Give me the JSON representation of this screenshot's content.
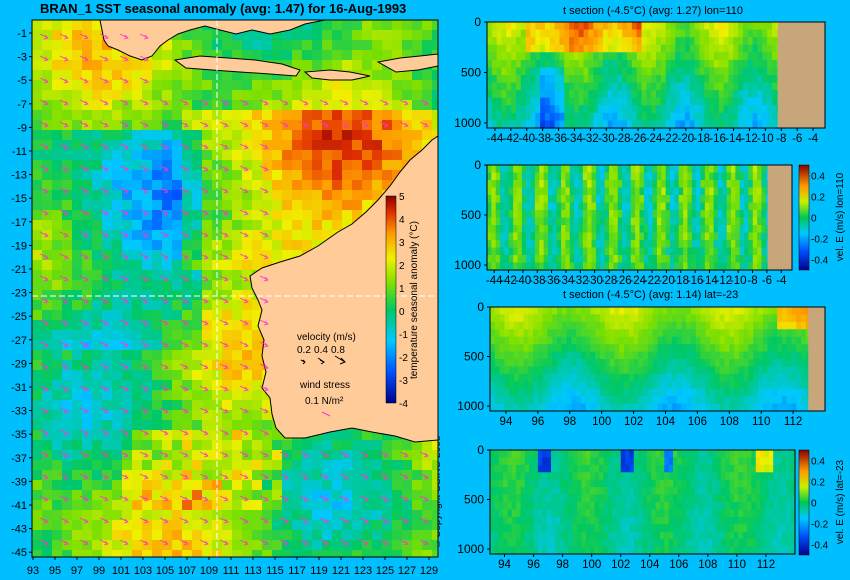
{
  "main_title": "BRAN_1 SST seasonal anomaly (avg: 1.47) for 16-Aug-1993",
  "copyright": "© Copyright CSIRO 2006",
  "map": {
    "colorbar_label": "temperature seasonal anomaly (°C)",
    "velocity_title": "velocity (m/s)",
    "velocity_scale": [
      "0.2",
      "0.4",
      "0.8"
    ],
    "wind_title": "wind stress",
    "wind_value": "0.1 N/m²",
    "lat_ticks": [
      "-1",
      "-3",
      "-5",
      "-7",
      "-9",
      "-11",
      "-13",
      "-15",
      "-17",
      "-19",
      "-21",
      "-23",
      "-25",
      "-27",
      "-29",
      "-31",
      "-33",
      "-35",
      "-37",
      "-39",
      "-41",
      "-43",
      "-45"
    ],
    "lon_ticks": [
      "93",
      "95",
      "97",
      "99",
      "101",
      "103",
      "105",
      "107",
      "109",
      "111",
      "113",
      "115",
      "117",
      "119",
      "121",
      "123",
      "125",
      "127",
      "129"
    ]
  },
  "chart_data": [
    {
      "type": "heatmap",
      "title": "BRAN_1 SST seasonal anomaly (avg: 1.47) for 16-Aug-1993",
      "colorbar_label": "temperature seasonal anomaly (°C)",
      "colorbar_ticks": [
        "5",
        "4",
        "3",
        "2",
        "1",
        "0",
        "-1",
        "-2",
        "-3",
        "-4"
      ],
      "zlim": [
        -4,
        5
      ],
      "xlim": [
        93,
        130
      ],
      "ylim": [
        -45,
        0
      ],
      "crosshair": {
        "lon": 110,
        "lat": -23
      }
    },
    {
      "type": "heatmap",
      "title": "t section (-4.5°C) (avg: 1.27) lon=110",
      "x_ticks": [
        "-44",
        "-42",
        "-40",
        "-38",
        "-36",
        "-34",
        "-32",
        "-30",
        "-28",
        "-26",
        "-24",
        "-22",
        "-20",
        "-18",
        "-16",
        "-14",
        "-12",
        "-10",
        "-8",
        "-6",
        "-4"
      ],
      "y_ticks": [
        "0",
        "500",
        "1000"
      ],
      "xlim": [
        -45,
        -2.5
      ],
      "ylim": [
        1050,
        0
      ]
    },
    {
      "type": "heatmap",
      "title": "",
      "colorbar_label": "vel. E (m/s) lon=110",
      "colorbar_ticks": [
        "0.4",
        "0.2",
        "0",
        "-0.2",
        "-0.4"
      ],
      "zlim": [
        -0.5,
        0.5
      ],
      "x_ticks": [
        "-44",
        "-42",
        "-40",
        "-38",
        "-36",
        "-34",
        "-32",
        "-30",
        "-28",
        "-26",
        "-24",
        "-22",
        "-20",
        "-18",
        "-16",
        "-14",
        "-12",
        "-10",
        "-8",
        "-6",
        "-4"
      ],
      "y_ticks": [
        "0",
        "500",
        "1000"
      ],
      "xlim": [
        -45,
        -2.5
      ],
      "ylim": [
        1050,
        0
      ]
    },
    {
      "type": "heatmap",
      "title": "t section (-4.5°C) (avg: 1.14) lat=-23",
      "x_ticks": [
        "94",
        "96",
        "98",
        "100",
        "102",
        "104",
        "106",
        "108",
        "110",
        "112"
      ],
      "y_ticks": [
        "0",
        "500",
        "1000"
      ],
      "xlim": [
        93,
        114
      ],
      "ylim": [
        1050,
        0
      ]
    },
    {
      "type": "heatmap",
      "title": "",
      "colorbar_label": "vel. E (m/s) lat=-23",
      "colorbar_ticks": [
        "0.4",
        "0.2",
        "0",
        "-0.2",
        "-0.4"
      ],
      "zlim": [
        -0.5,
        0.5
      ],
      "x_ticks": [
        "94",
        "96",
        "98",
        "100",
        "102",
        "104",
        "106",
        "108",
        "110",
        "112"
      ],
      "y_ticks": [
        "0",
        "500",
        "1000"
      ],
      "xlim": [
        93,
        114
      ],
      "ylim": [
        1050,
        0
      ]
    }
  ],
  "colors": {
    "background": "#00bfff",
    "land": "#ffcc99",
    "seafloor": "#c8a67c",
    "arrow": "#ff33cc"
  }
}
